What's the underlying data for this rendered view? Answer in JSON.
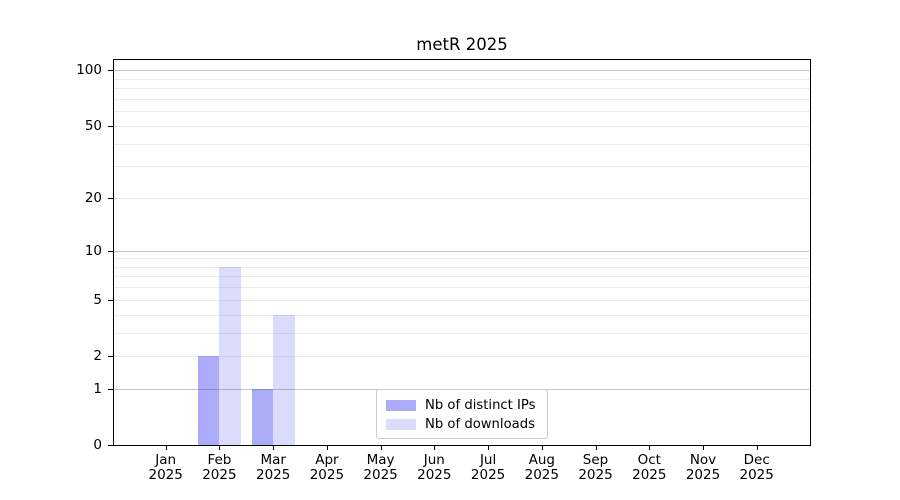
{
  "title": "metR 2025",
  "chart_data": {
    "type": "bar",
    "title": "metR 2025",
    "year": "2025",
    "categories": [
      "Jan",
      "Feb",
      "Mar",
      "Apr",
      "May",
      "Jun",
      "Jul",
      "Aug",
      "Sep",
      "Oct",
      "Nov",
      "Dec"
    ],
    "x_tick_labels": [
      "Jan 2025",
      "Feb 2025",
      "Mar 2025",
      "Apr 2025",
      "May 2025",
      "Jun 2025",
      "Jul 2025",
      "Aug 2025",
      "Sep 2025",
      "Oct 2025",
      "Nov 2025",
      "Dec 2025"
    ],
    "series": [
      {
        "name": "Nb of distinct IPs",
        "color": "rgba(28,28,232,0.37)",
        "values": [
          0,
          2,
          1,
          0,
          0,
          0,
          0,
          0,
          0,
          0,
          0,
          0
        ]
      },
      {
        "name": "Nb of downloads",
        "color": "rgba(28,28,232,0.155)",
        "values": [
          0,
          8,
          4,
          0,
          0,
          0,
          0,
          0,
          0,
          0,
          0,
          0
        ]
      }
    ],
    "y_scale": "log1p",
    "ylim": [
      0,
      115
    ],
    "y_tick_values": [
      0,
      1,
      2,
      5,
      10,
      20,
      50,
      100
    ],
    "y_tick_labels": [
      "0",
      "1",
      "2",
      "5",
      "10",
      "20",
      "50",
      "100"
    ],
    "major_grid_values": [
      1,
      10,
      100
    ],
    "minor_grid_values": [
      2,
      3,
      4,
      5,
      6,
      7,
      8,
      9,
      20,
      30,
      40,
      50,
      60,
      70,
      80,
      90
    ],
    "grid_major_color": "#c8c8c8",
    "grid_minor_color": "#ebebeb",
    "legend_position": "lower center",
    "legend": [
      "Nb of distinct IPs",
      "Nb of downloads"
    ]
  }
}
